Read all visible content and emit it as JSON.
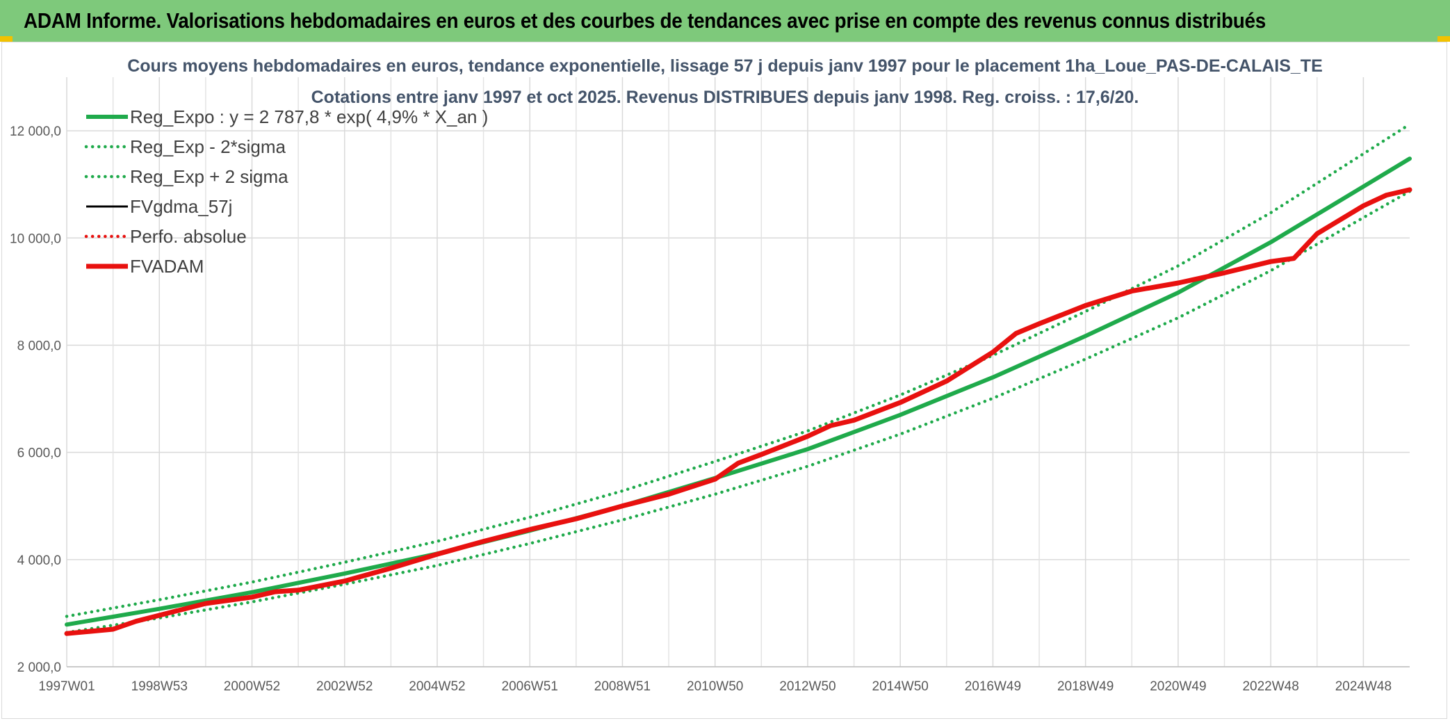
{
  "banner": {
    "title": "ADAM Informe. Valorisations hebdomadaires en euros et des courbes de tendances avec prise en compte des revenus connus distribués"
  },
  "colors": {
    "banner_bg": "#7ec97b",
    "reg_green": "#1faa4b",
    "fvadam_red": "#e8110f",
    "fvgdma_black": "#000000",
    "grid": "#d9d9d9",
    "title_text": "#44546a"
  },
  "chart_data": {
    "type": "line",
    "title": "Cours moyens hebdomadaires en euros, tendance exponentielle, lissage 57 j depuis janv 1997 pour le placement 1ha_Loue_PAS-DE-CALAIS_TE",
    "subtitle": "Cotations entre janv 1997 et oct 2025. Revenus DISTRIBUES depuis janv 1998. Reg. croiss. : 17,6/20.",
    "xlabel": "",
    "ylabel": "",
    "x_tick_labels": [
      "1997W01",
      "1998W53",
      "2000W52",
      "2002W52",
      "2004W52",
      "2006W51",
      "2008W51",
      "2010W50",
      "2012W50",
      "2014W50",
      "2016W49",
      "2018W49",
      "2020W49",
      "2022W48",
      "2024W48"
    ],
    "x_tick_years": [
      1997.0,
      1999.0,
      2001.0,
      2003.0,
      2005.0,
      2007.0,
      2009.0,
      2011.0,
      2013.0,
      2015.0,
      2017.0,
      2019.0,
      2021.0,
      2023.0,
      2025.0
    ],
    "xlim": [
      1997.0,
      2026.0
    ],
    "ylim": [
      2000,
      13000
    ],
    "y_ticks": [
      2000,
      4000,
      6000,
      8000,
      10000,
      12000
    ],
    "y_tick_labels": [
      "2 000,0",
      "4 000,0",
      "6 000,0",
      "8 000,0",
      "10 000,0",
      "12 000,0"
    ],
    "grid": true,
    "legend_position": "top-left",
    "series": [
      {
        "name": "Reg_Expo : y = 2 787,8 * exp( 4,9% *  X_an )",
        "style": "solid",
        "color": "#1faa4b",
        "x": [
          1997.0,
          1999.0,
          2001.0,
          2003.0,
          2005.0,
          2007.0,
          2009.0,
          2011.0,
          2013.0,
          2015.0,
          2017.0,
          2019.0,
          2021.0,
          2023.0,
          2025.0,
          2026.0
        ],
        "values": [
          2788,
          3080,
          3390,
          3740,
          4110,
          4540,
          5000,
          5520,
          6060,
          6700,
          7400,
          8170,
          8980,
          9920,
          10960,
          11480
        ]
      },
      {
        "name": "Reg_Exp - 2*sigma",
        "style": "dotted",
        "color": "#1faa4b",
        "x": [
          1997.0,
          1999.0,
          2001.0,
          2003.0,
          2005.0,
          2007.0,
          2009.0,
          2011.0,
          2013.0,
          2015.0,
          2017.0,
          2019.0,
          2021.0,
          2023.0,
          2025.0,
          2026.0
        ],
        "values": [
          2640,
          2910,
          3210,
          3540,
          3890,
          4300,
          4740,
          5220,
          5740,
          6340,
          7010,
          7740,
          8510,
          9390,
          10380,
          10870
        ]
      },
      {
        "name": "Reg_Exp + 2 sigma",
        "style": "dotted",
        "color": "#1faa4b",
        "x": [
          1997.0,
          1999.0,
          2001.0,
          2003.0,
          2005.0,
          2007.0,
          2009.0,
          2011.0,
          2013.0,
          2015.0,
          2017.0,
          2019.0,
          2021.0,
          2023.0,
          2025.0,
          2026.0
        ],
        "values": [
          2940,
          3250,
          3580,
          3950,
          4340,
          4790,
          5280,
          5830,
          6400,
          7070,
          7810,
          8630,
          9480,
          10470,
          11570,
          12120
        ]
      },
      {
        "name": "FVgdma_57j",
        "style": "solid-thin",
        "color": "#000000",
        "x": [
          1997.0,
          1998.0,
          1998.5,
          1999.0,
          2000.0,
          2001.0,
          2001.5,
          2002.0,
          2003.0,
          2004.0,
          2005.0,
          2006.0,
          2007.0,
          2008.0,
          2009.0,
          2010.0,
          2011.0,
          2011.5,
          2012.0,
          2013.0,
          2013.5,
          2014.0,
          2015.0,
          2016.0,
          2017.0,
          2017.5,
          2018.0,
          2019.0,
          2020.0,
          2021.0,
          2022.0,
          2023.0,
          2023.5,
          2024.0,
          2025.0,
          2025.5,
          2026.0
        ],
        "values": [
          2620,
          2700,
          2850,
          2960,
          3180,
          3300,
          3400,
          3430,
          3600,
          3840,
          4100,
          4340,
          4560,
          4760,
          5000,
          5220,
          5500,
          5800,
          5960,
          6300,
          6500,
          6600,
          6930,
          7330,
          7870,
          8220,
          8400,
          8740,
          9010,
          9160,
          9350,
          9560,
          9620,
          10080,
          10600,
          10800,
          10900
        ]
      },
      {
        "name": "Perfo. absolue",
        "style": "dotted",
        "color": "#e8110f",
        "x": [
          1997.0,
          1998.0,
          1998.5,
          1999.0,
          2000.0,
          2001.0,
          2001.5,
          2002.0,
          2003.0,
          2004.0,
          2005.0,
          2006.0,
          2007.0,
          2008.0,
          2009.0,
          2010.0,
          2011.0,
          2011.5,
          2012.0,
          2013.0,
          2013.5,
          2014.0,
          2015.0,
          2016.0,
          2017.0,
          2017.5,
          2018.0,
          2019.0,
          2020.0,
          2021.0,
          2022.0,
          2023.0,
          2023.5,
          2024.0,
          2025.0,
          2025.5,
          2026.0
        ],
        "values": [
          2620,
          2700,
          2850,
          2960,
          3180,
          3300,
          3400,
          3430,
          3600,
          3840,
          4100,
          4340,
          4560,
          4760,
          5000,
          5220,
          5500,
          5800,
          5960,
          6300,
          6500,
          6600,
          6930,
          7330,
          7870,
          8220,
          8400,
          8740,
          9010,
          9160,
          9350,
          9560,
          9620,
          10080,
          10600,
          10800,
          10900
        ]
      },
      {
        "name": "FVADAM",
        "style": "solid-thick",
        "color": "#e8110f",
        "x": [
          1997.0,
          1998.0,
          1998.5,
          1999.0,
          2000.0,
          2001.0,
          2001.5,
          2002.0,
          2003.0,
          2004.0,
          2005.0,
          2006.0,
          2007.0,
          2008.0,
          2009.0,
          2010.0,
          2011.0,
          2011.5,
          2012.0,
          2013.0,
          2013.5,
          2014.0,
          2015.0,
          2016.0,
          2017.0,
          2017.5,
          2018.0,
          2019.0,
          2020.0,
          2021.0,
          2022.0,
          2023.0,
          2023.5,
          2024.0,
          2025.0,
          2025.5,
          2026.0
        ],
        "values": [
          2620,
          2700,
          2850,
          2960,
          3180,
          3300,
          3400,
          3430,
          3600,
          3840,
          4100,
          4340,
          4560,
          4760,
          5000,
          5220,
          5500,
          5800,
          5960,
          6300,
          6500,
          6600,
          6930,
          7330,
          7870,
          8220,
          8400,
          8740,
          9010,
          9160,
          9350,
          9560,
          9620,
          10080,
          10600,
          10800,
          10900
        ]
      }
    ]
  }
}
